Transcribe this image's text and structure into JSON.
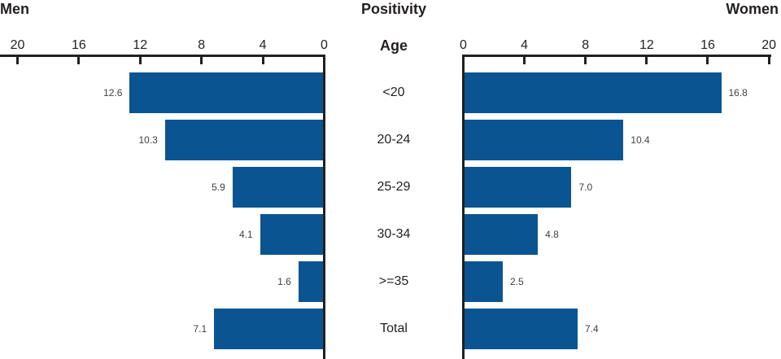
{
  "titles": {
    "left": "Men",
    "center": "Positivity",
    "right": "Women",
    "age": "Age"
  },
  "chart_data": {
    "type": "bar",
    "variant": "butterfly-horizontal",
    "title": "Positivity",
    "category_axis_label": "Age",
    "categories": [
      "<20",
      "20-24",
      "25-29",
      "30-34",
      ">=35",
      "Total"
    ],
    "series": [
      {
        "name": "Men",
        "side": "left",
        "values": [
          12.6,
          10.3,
          5.9,
          4.1,
          1.6,
          7.1
        ],
        "labels": [
          "12.6",
          "10.3",
          "5.9",
          "4.1",
          "1.6",
          "7.1"
        ]
      },
      {
        "name": "Women",
        "side": "right",
        "values": [
          16.8,
          10.4,
          7.0,
          4.8,
          2.5,
          7.4
        ],
        "labels": [
          "16.8",
          "10.4",
          "7.0",
          "4.8",
          "2.5",
          "7.4"
        ]
      }
    ],
    "axis": {
      "min": 0,
      "max": 20,
      "ticks": [
        0,
        4,
        8,
        12,
        16,
        20
      ],
      "tick_labels": [
        "0",
        "4",
        "8",
        "12",
        "16",
        "20"
      ],
      "left_axis_direction": "reversed"
    },
    "colors": {
      "bar": "#0a5591",
      "axis": "#231f20",
      "value_label": "#404040",
      "text": "#231f20"
    },
    "grid": false,
    "legend": "none"
  }
}
